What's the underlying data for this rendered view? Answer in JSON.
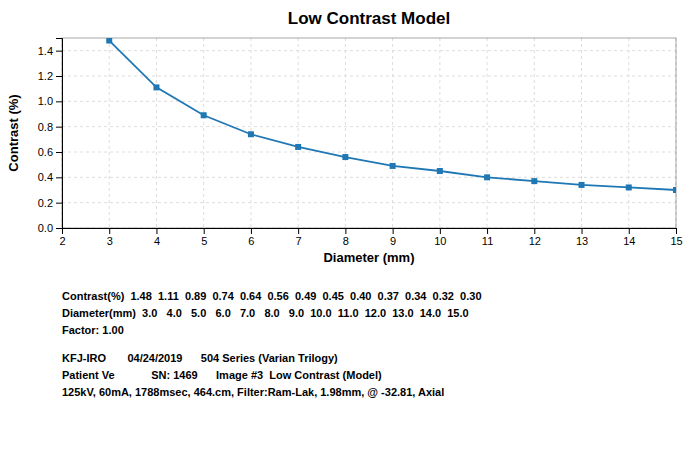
{
  "chart_data": {
    "type": "line",
    "title": "Low Contrast Model",
    "x_label": "Diameter (mm)",
    "y_label": "Contrast (%)",
    "x": [
      3.0,
      4.0,
      5.0,
      6.0,
      7.0,
      8.0,
      9.0,
      10.0,
      11.0,
      12.0,
      13.0,
      14.0,
      15.0
    ],
    "values": [
      1.48,
      1.11,
      0.89,
      0.74,
      0.64,
      0.56,
      0.49,
      0.45,
      0.4,
      0.37,
      0.34,
      0.32,
      0.3
    ],
    "xlim": [
      2,
      15
    ],
    "ylim": [
      0,
      1.5
    ],
    "xticks": [
      2,
      3,
      4,
      5,
      6,
      7,
      8,
      9,
      10,
      11,
      12,
      13,
      14,
      15
    ],
    "yticks": [
      {
        "value": 0,
        "label": "0.0"
      },
      0.2,
      0.4,
      0.6,
      0.8,
      {
        "value": 1.0,
        "label": "1.0"
      },
      1.2,
      1.4
    ],
    "grid": true,
    "marker": "square",
    "line_style": "solid",
    "annotations": [
      "Contrast(%)  1.48  1.11  0.89  0.74  0.64  0.56  0.49  0.45  0.40  0.37  0.34  0.32  0.30",
      "Diameter(mm)  3.0   4.0   5.0   6.0   7.0   8.0   9.0  10.0  11.0  12.0  13.0  14.0  15.0",
      "Factor: 1.00",
      "KFJ-IRO       04/24/2019      504 Series (Varian Trilogy)",
      "Patient Ve            SN: 1469      Image #3  Low Contrast (Model)",
      "125kV, 60mA, 1788msec, 464.cm, Filter:Ram-Lak, 1.98mm, @ -32.81, Axial"
    ]
  }
}
